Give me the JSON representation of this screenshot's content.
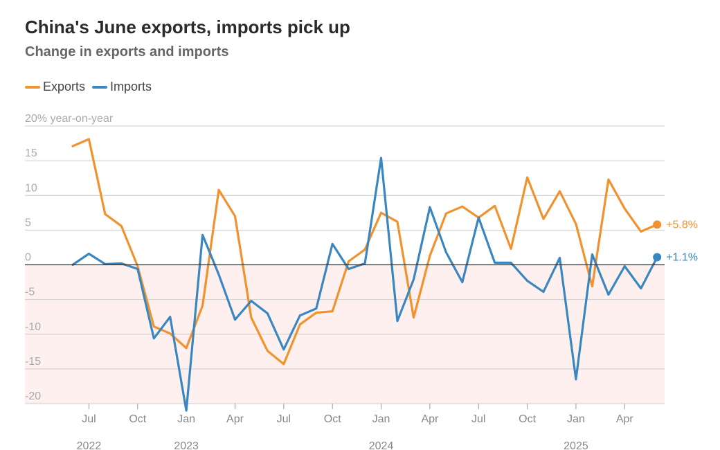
{
  "title": "China's June exports, imports pick up",
  "subtitle": "Change in exports and imports",
  "colors": {
    "exports": "#f0922e",
    "imports": "#3a86c0",
    "negative_band": "#fdf0ef",
    "grid": "#cccccc",
    "zero": "#333333"
  },
  "chart_data": {
    "type": "line",
    "title": "China's June exports, imports pick up",
    "subtitle": "Change in exports and imports",
    "ylabel": "% year-on-year",
    "top_tick_label": "20% year-on-year",
    "ylim": [
      -20,
      20
    ],
    "yticks": [
      20,
      15,
      10,
      5,
      0,
      -5,
      -10,
      -15,
      -20
    ],
    "x": [
      "2022-06",
      "2022-07",
      "2022-08",
      "2022-09",
      "2022-10",
      "2022-11",
      "2022-12",
      "2023-01",
      "2023-02",
      "2023-03",
      "2023-04",
      "2023-05",
      "2023-06",
      "2023-07",
      "2023-08",
      "2023-09",
      "2023-10",
      "2023-11",
      "2023-12",
      "2024-01",
      "2024-02",
      "2024-03",
      "2024-04",
      "2024-05",
      "2024-06",
      "2024-07",
      "2024-08",
      "2024-09",
      "2024-10",
      "2024-11",
      "2024-12",
      "2025-01",
      "2025-02",
      "2025-03",
      "2025-04",
      "2025-05",
      "2025-06"
    ],
    "x_tick_labels": [
      {
        "x": "2022-07",
        "label": "Jul",
        "year": "2022"
      },
      {
        "x": "2022-10",
        "label": "Oct",
        "year": ""
      },
      {
        "x": "2023-01",
        "label": "Jan",
        "year": "2023"
      },
      {
        "x": "2023-04",
        "label": "Apr",
        "year": ""
      },
      {
        "x": "2023-07",
        "label": "Jul",
        "year": ""
      },
      {
        "x": "2023-10",
        "label": "Oct",
        "year": ""
      },
      {
        "x": "2024-01",
        "label": "Jan",
        "year": "2024"
      },
      {
        "x": "2024-04",
        "label": "Apr",
        "year": ""
      },
      {
        "x": "2024-07",
        "label": "Jul",
        "year": ""
      },
      {
        "x": "2024-10",
        "label": "Oct",
        "year": ""
      },
      {
        "x": "2025-01",
        "label": "Jan",
        "year": "2025"
      },
      {
        "x": "2025-04",
        "label": "Apr",
        "year": ""
      }
    ],
    "series": [
      {
        "name": "Exports",
        "color": "#f0922e",
        "end_label": "+5.8%",
        "values": [
          17.1,
          18.1,
          7.3,
          5.6,
          -0.2,
          -8.9,
          -9.9,
          -12.0,
          -5.9,
          10.8,
          7.0,
          -7.6,
          -12.4,
          -14.3,
          -8.6,
          -6.9,
          -6.7,
          0.5,
          2.2,
          7.5,
          6.2,
          -7.6,
          1.3,
          7.4,
          8.4,
          6.8,
          8.5,
          2.3,
          12.6,
          6.6,
          10.6,
          5.9,
          -3.1,
          12.3,
          8.1,
          4.8,
          5.8
        ]
      },
      {
        "name": "Imports",
        "color": "#3a86c0",
        "end_label": "+1.1%",
        "values": [
          0.0,
          1.6,
          0.1,
          0.2,
          -0.6,
          -10.6,
          -7.5,
          -21.0,
          4.3,
          -1.4,
          -7.9,
          -5.2,
          -7.0,
          -12.2,
          -7.3,
          -6.3,
          3.0,
          -0.6,
          0.2,
          15.4,
          -8.1,
          -2.1,
          8.3,
          1.8,
          -2.5,
          6.8,
          0.3,
          0.3,
          -2.3,
          -3.9,
          1.0,
          -16.5,
          1.5,
          -4.3,
          -0.2,
          -3.4,
          1.1
        ]
      }
    ],
    "negative_region_shaded": true,
    "grid": true
  }
}
